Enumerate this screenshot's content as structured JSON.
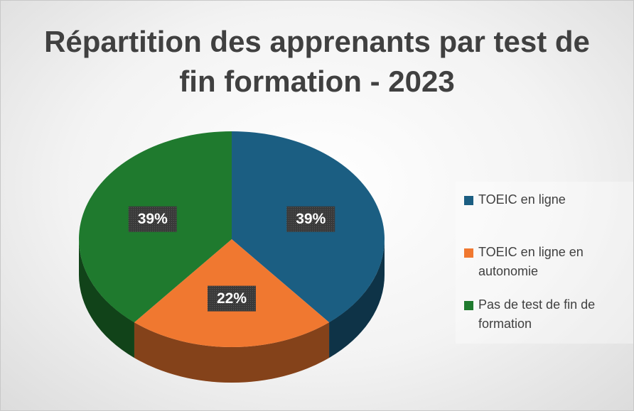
{
  "chart_data": {
    "type": "pie",
    "title": "Répartition des apprenants par test de fin formation - 2023",
    "categories": [
      "TOEIC en ligne",
      "TOEIC en ligne en autonomie",
      "Pas de test de fin de formation"
    ],
    "values": [
      39,
      22,
      39
    ],
    "value_labels": [
      "39%",
      "22%",
      "39%"
    ],
    "colors": [
      "#1b5e82",
      "#f07830",
      "#1f7a2e"
    ],
    "legend": "right"
  }
}
